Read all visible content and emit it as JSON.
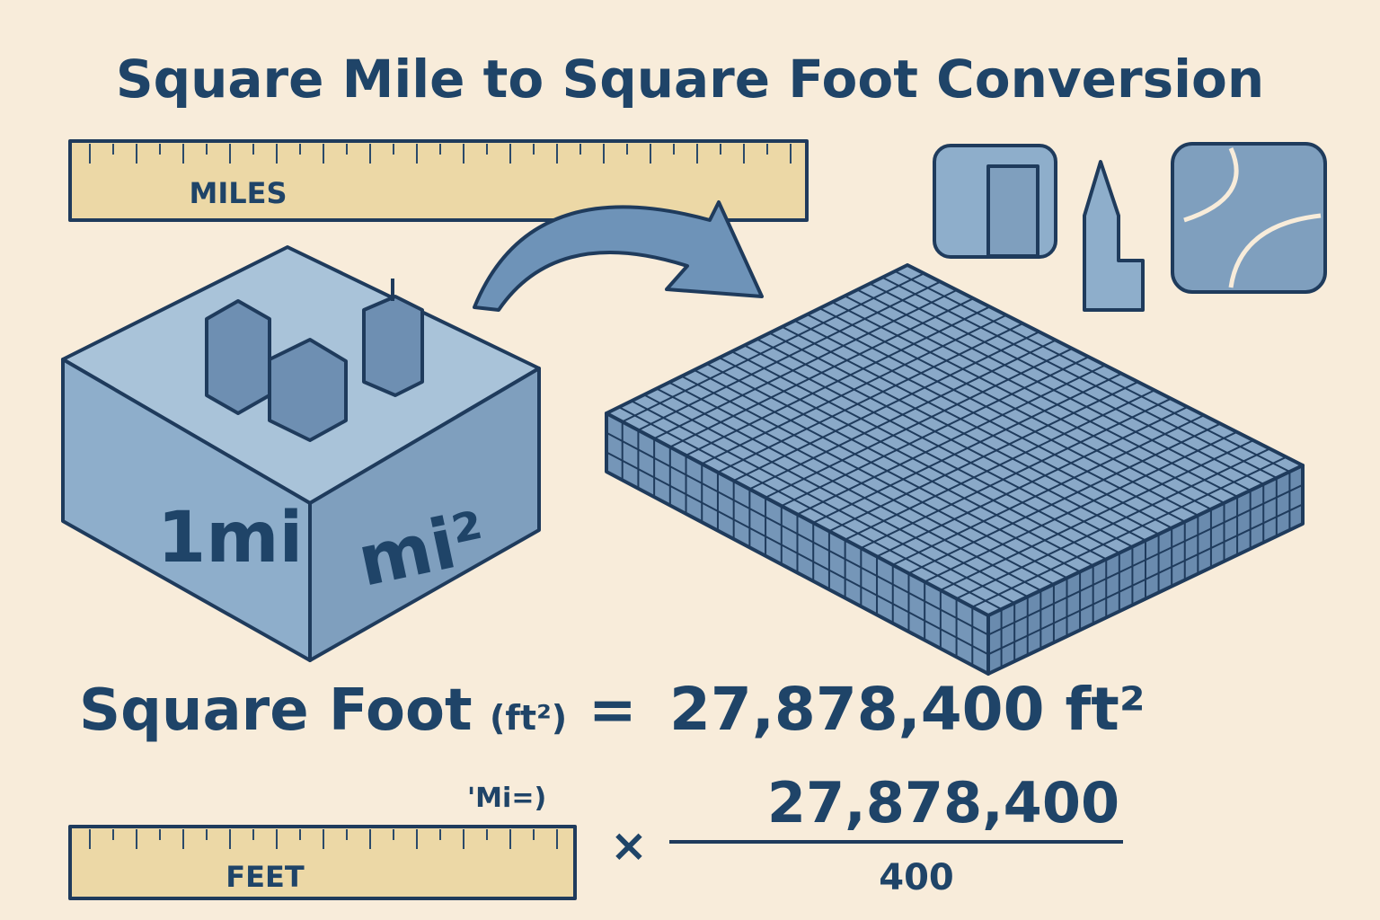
{
  "title": "Square Mile to Square Foot Conversion",
  "ruler_top": {
    "label": "MILES"
  },
  "cube": {
    "front_label": "1mi",
    "side_label": "mi²"
  },
  "equation": {
    "lhs": "Square Foot",
    "unit": "(ft²)",
    "equals": "=",
    "rhs": "27,878,400 ft²"
  },
  "formula": {
    "note": "'Mi=)",
    "operator": "×",
    "numerator": "27,878,400",
    "denominator": "400"
  },
  "ruler_bottom": {
    "label": "FEET"
  }
}
